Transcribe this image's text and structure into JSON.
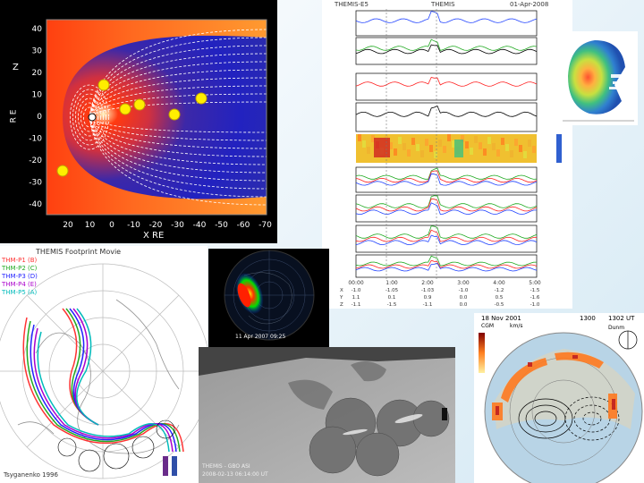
{
  "magnetosphere": {
    "z_axis_label": "Z",
    "z_axis_unit": "R E",
    "x_axis_label": "X RE",
    "y_ticks": [
      "40",
      "30",
      "20",
      "10",
      "0",
      "-10",
      "-20",
      "-30",
      "-40"
    ],
    "x_ticks": [
      "20",
      "10",
      "0",
      "-10",
      "-20",
      "-30",
      "-40",
      "-50",
      "-60",
      "-70"
    ]
  },
  "timeseries": {
    "header_left": "THEMIS-E5",
    "header_mid": "THEMIS",
    "header_right": "01-Apr-2008",
    "bottom_rows": [
      [
        "X",
        "-1.0",
        "-1.05",
        "-1.03",
        "-1.0",
        "-1.2",
        "-1.5"
      ],
      [
        "Y",
        "1.1",
        "0.1",
        "0.9",
        "0.0",
        "0.5",
        "-1.6"
      ],
      [
        "Z",
        "-1.1",
        "-1.5",
        "-1.1",
        "0.0",
        "-0.5",
        "-1.0"
      ]
    ],
    "time_ticks": [
      "00:00",
      "1:00",
      "2:00",
      "3:00",
      "4:00",
      "5:00"
    ]
  },
  "polar_plot": {
    "title": "THEMIS Footprint Movie",
    "legend": [
      "THM-P1 (B)",
      "THM-P2 (C)",
      "THM-P3 (D)",
      "THM-P4 (E)",
      "THM-P5 (A)"
    ],
    "colors": [
      "#ff3333",
      "#22aa22",
      "#2222ff",
      "#aa00cc",
      "#00bbbb"
    ],
    "footer": "Tsyganenko 1996"
  },
  "auroral_image": {
    "timestamp": "11 Apr 2007 09:25"
  },
  "gbo_mosaic": {
    "caption_line1": "THEMIS - GBO ASI",
    "caption_line2": "2008-02-13 06:14:00 UT"
  },
  "radar_map": {
    "header_left": "18 Nov 2001",
    "header_mid": "1300",
    "header_right": "1302 UT",
    "sub_left": "CGM",
    "scale_unit": "km/s",
    "sub_right": "Dunm"
  }
}
